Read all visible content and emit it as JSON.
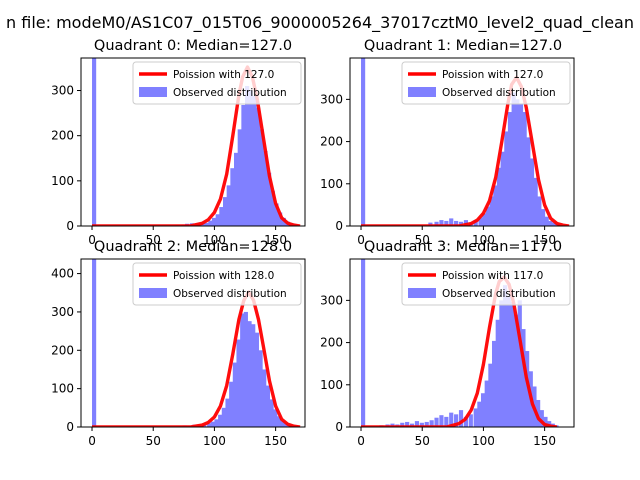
{
  "figure": {
    "suptitle": "n file: modeM0/AS1C07_015T06_9000005264_37017cztM0_level2_quad_clean"
  },
  "colors": {
    "hist": "#8080ff",
    "poisson": "#ff0000",
    "axis": "#000000"
  },
  "chart_data": [
    {
      "type": "bar",
      "title": "Quadrant 0: Median=127.0",
      "median": 127.0,
      "xlim": [
        -9,
        174
      ],
      "ylim": [
        0,
        372
      ],
      "xticks": [
        0,
        50,
        100,
        150
      ],
      "yticks": [
        0,
        100,
        200,
        300
      ],
      "legend_placement": "top-right",
      "legend": [
        "Poission with 127.0",
        "Observed distribution"
      ],
      "histogram": {
        "bin_width": 3.4,
        "bins": [
          [
            0,
            372
          ],
          [
            68,
            2
          ],
          [
            73,
            3
          ],
          [
            76,
            5
          ],
          [
            80,
            6
          ],
          [
            83,
            4
          ],
          [
            86,
            5
          ],
          [
            89,
            8
          ],
          [
            92,
            7
          ],
          [
            95,
            12
          ],
          [
            98,
            18
          ],
          [
            101,
            26
          ],
          [
            104,
            42
          ],
          [
            107,
            64
          ],
          [
            110,
            90
          ],
          [
            113,
            128
          ],
          [
            116,
            162
          ],
          [
            119,
            214
          ],
          [
            122,
            268
          ],
          [
            125,
            310
          ],
          [
            128,
            300
          ],
          [
            131,
            288
          ],
          [
            134,
            262
          ],
          [
            137,
            214
          ],
          [
            140,
            166
          ],
          [
            143,
            118
          ],
          [
            146,
            78
          ],
          [
            149,
            50
          ],
          [
            152,
            30
          ],
          [
            155,
            18
          ],
          [
            158,
            10
          ],
          [
            161,
            6
          ],
          [
            164,
            4
          ]
        ]
      },
      "poisson": {
        "label": "Poission with 127.0",
        "x": [
          0,
          80,
          90,
          95,
          100,
          105,
          110,
          115,
          120,
          123,
          127,
          131,
          135,
          140,
          145,
          150,
          155,
          160,
          165,
          170
        ],
        "y": [
          0,
          0,
          6,
          14,
          30,
          60,
          115,
          200,
          290,
          330,
          352,
          330,
          280,
          195,
          110,
          50,
          18,
          6,
          2,
          0
        ]
      }
    },
    {
      "type": "bar",
      "title": "Quadrant 1: Median=127.0",
      "median": 127.0,
      "xlim": [
        -9,
        174
      ],
      "ylim": [
        0,
        398
      ],
      "xticks": [
        0,
        50,
        100,
        150
      ],
      "yticks": [
        0,
        100,
        200,
        300
      ],
      "legend_placement": "top-right",
      "legend": [
        "Poission with 127.0",
        "Observed distribution"
      ],
      "histogram": {
        "bin_width": 3.4,
        "bins": [
          [
            0,
            398
          ],
          [
            55,
            8
          ],
          [
            60,
            10
          ],
          [
            64,
            14
          ],
          [
            68,
            12
          ],
          [
            72,
            18
          ],
          [
            76,
            12
          ],
          [
            80,
            10
          ],
          [
            84,
            14
          ],
          [
            88,
            8
          ],
          [
            92,
            14
          ],
          [
            96,
            20
          ],
          [
            99,
            30
          ],
          [
            102,
            46
          ],
          [
            105,
            70
          ],
          [
            108,
            96
          ],
          [
            111,
            138
          ],
          [
            114,
            176
          ],
          [
            117,
            224
          ],
          [
            120,
            270
          ],
          [
            123,
            316
          ],
          [
            126,
            300
          ],
          [
            129,
            290
          ],
          [
            132,
            270
          ],
          [
            135,
            210
          ],
          [
            138,
            160
          ],
          [
            141,
            114
          ],
          [
            144,
            70
          ],
          [
            147,
            40
          ],
          [
            150,
            22
          ],
          [
            153,
            12
          ],
          [
            156,
            8
          ],
          [
            159,
            5
          ]
        ]
      },
      "poisson": {
        "label": "Poission with 127.0",
        "x": [
          0,
          80,
          90,
          95,
          100,
          105,
          110,
          115,
          120,
          123,
          127,
          131,
          135,
          140,
          145,
          150,
          155,
          160,
          165,
          170
        ],
        "y": [
          0,
          0,
          6,
          14,
          30,
          60,
          115,
          200,
          290,
          335,
          352,
          330,
          280,
          195,
          110,
          50,
          18,
          6,
          2,
          0
        ]
      }
    },
    {
      "type": "bar",
      "title": "Quadrant 2: Median=128.0",
      "median": 128.0,
      "xlim": [
        -9,
        174
      ],
      "ylim": [
        0,
        438
      ],
      "xticks": [
        0,
        50,
        100,
        150
      ],
      "yticks": [
        0,
        100,
        200,
        300,
        400
      ],
      "legend_placement": "top-right",
      "legend": [
        "Poission with 128.0",
        "Observed distribution"
      ],
      "histogram": {
        "bin_width": 3.4,
        "bins": [
          [
            0,
            438
          ],
          [
            70,
            2
          ],
          [
            74,
            4
          ],
          [
            78,
            3
          ],
          [
            82,
            6
          ],
          [
            86,
            4
          ],
          [
            90,
            6
          ],
          [
            94,
            10
          ],
          [
            97,
            14
          ],
          [
            100,
            20
          ],
          [
            103,
            32
          ],
          [
            106,
            50
          ],
          [
            109,
            74
          ],
          [
            112,
            118
          ],
          [
            115,
            168
          ],
          [
            118,
            228
          ],
          [
            121,
            296
          ],
          [
            124,
            300
          ],
          [
            127,
            276
          ],
          [
            130,
            268
          ],
          [
            133,
            246
          ],
          [
            136,
            200
          ],
          [
            139,
            150
          ],
          [
            142,
            108
          ],
          [
            145,
            72
          ],
          [
            148,
            46
          ],
          [
            151,
            28
          ],
          [
            154,
            16
          ],
          [
            157,
            10
          ],
          [
            160,
            6
          ],
          [
            163,
            4
          ],
          [
            166,
            2
          ]
        ]
      },
      "poisson": {
        "label": "Poission with 128.0",
        "x": [
          0,
          80,
          90,
          95,
          100,
          105,
          110,
          115,
          120,
          124,
          128,
          132,
          136,
          140,
          145,
          150,
          155,
          160,
          165,
          170
        ],
        "y": [
          0,
          0,
          5,
          12,
          26,
          55,
          108,
          190,
          280,
          330,
          352,
          330,
          280,
          210,
          120,
          55,
          20,
          7,
          2,
          0
        ]
      }
    },
    {
      "type": "bar",
      "title": "Quadrant 3: Median=117.0",
      "median": 117.0,
      "xlim": [
        -9,
        174
      ],
      "ylim": [
        0,
        398
      ],
      "xticks": [
        0,
        50,
        100,
        150
      ],
      "yticks": [
        0,
        100,
        200,
        300
      ],
      "legend_placement": "top-right",
      "legend": [
        "Poission with 117.0",
        "Observed distribution"
      ],
      "histogram": {
        "bin_width": 3.4,
        "bins": [
          [
            0,
            398
          ],
          [
            15,
            4
          ],
          [
            20,
            6
          ],
          [
            24,
            8
          ],
          [
            28,
            6
          ],
          [
            32,
            10
          ],
          [
            36,
            12
          ],
          [
            40,
            8
          ],
          [
            44,
            14
          ],
          [
            48,
            10
          ],
          [
            52,
            12
          ],
          [
            56,
            16
          ],
          [
            60,
            22
          ],
          [
            64,
            28
          ],
          [
            68,
            24
          ],
          [
            72,
            34
          ],
          [
            76,
            30
          ],
          [
            80,
            40
          ],
          [
            84,
            24
          ],
          [
            88,
            30
          ],
          [
            92,
            44
          ],
          [
            95,
            60
          ],
          [
            98,
            80
          ],
          [
            101,
            110
          ],
          [
            104,
            150
          ],
          [
            107,
            204
          ],
          [
            110,
            254
          ],
          [
            113,
            300
          ],
          [
            116,
            336
          ],
          [
            119,
            310
          ],
          [
            122,
            296
          ],
          [
            125,
            266
          ],
          [
            128,
            300
          ],
          [
            131,
            232
          ],
          [
            134,
            180
          ],
          [
            137,
            132
          ],
          [
            140,
            96
          ],
          [
            143,
            64
          ],
          [
            146,
            40
          ],
          [
            149,
            24
          ],
          [
            152,
            14
          ],
          [
            155,
            8
          ],
          [
            158,
            4
          ]
        ]
      },
      "poisson": {
        "label": "Poission with 117.0",
        "x": [
          0,
          70,
          80,
          85,
          90,
          95,
          100,
          105,
          110,
          113,
          117,
          121,
          125,
          130,
          135,
          140,
          145,
          150,
          155,
          160
        ],
        "y": [
          0,
          0,
          8,
          18,
          40,
          80,
          148,
          236,
          316,
          345,
          355,
          338,
          290,
          205,
          118,
          55,
          20,
          6,
          2,
          0
        ]
      }
    }
  ]
}
